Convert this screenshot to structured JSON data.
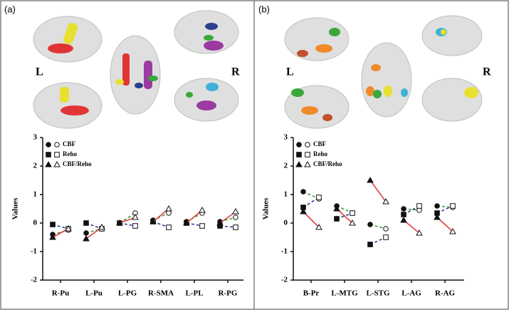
{
  "panel_labels": [
    "(a)",
    "(b)"
  ],
  "brains": [
    {
      "left": "L",
      "right": "R"
    },
    {
      "left": "L",
      "right": "R"
    }
  ],
  "chart_data": [
    {
      "type": "paired",
      "y_label": "Values",
      "categories": [
        "R-Pu",
        "L-Pu",
        "L-PG",
        "R-SMA",
        "L-PL",
        "R-PG"
      ],
      "ylim": [
        -2,
        3
      ],
      "yticks": [
        -2,
        -1,
        0,
        1,
        2,
        3
      ],
      "series": [
        {
          "name": "CBF",
          "marker": "circle",
          "color": "#3a9a3a",
          "dashed": true,
          "values": [
            -0.4,
            -0.35,
            0,
            0.1,
            0.05,
            0.05
          ],
          "values_open": [
            -0.25,
            -0.2,
            0.35,
            0.35,
            0.35,
            0.2
          ]
        },
        {
          "name": "Reho",
          "marker": "square",
          "color": "#2c3f8f",
          "dashed": true,
          "values": [
            -0.05,
            0,
            0,
            0.05,
            0,
            -0.1
          ],
          "values_open": [
            -0.2,
            -0.2,
            -0.1,
            -0.15,
            -0.1,
            -0.15
          ]
        },
        {
          "name": "CBF/Reho",
          "marker": "triangle",
          "color": "#e04040",
          "dashed": false,
          "values": [
            -0.5,
            -0.55,
            0,
            0.05,
            0,
            0
          ],
          "values_open": [
            -0.2,
            -0.15,
            0.2,
            0.5,
            0.45,
            0.4
          ]
        }
      ]
    },
    {
      "type": "paired",
      "y_label": "Values",
      "categories": [
        "B-Pr",
        "L-MTG",
        "L-STG",
        "L-AG",
        "R-AG"
      ],
      "ylim": [
        -2,
        3
      ],
      "yticks": [
        -2,
        -1,
        0,
        1,
        2,
        3
      ],
      "series": [
        {
          "name": "CBF",
          "marker": "circle",
          "color": "#3a9a3a",
          "dashed": true,
          "values": [
            1.1,
            0.6,
            -0.05,
            0.5,
            0.6
          ],
          "values_open": [
            0.85,
            0.35,
            -0.2,
            0.45,
            0.55
          ]
        },
        {
          "name": "Reho",
          "marker": "square",
          "color": "#2c3f8f",
          "dashed": true,
          "values": [
            0.55,
            0.15,
            -0.75,
            0.3,
            0.35
          ],
          "values_open": [
            0.9,
            0.35,
            -0.5,
            0.6,
            0.6
          ]
        },
        {
          "name": "CBF/Reho",
          "marker": "triangle",
          "color": "#e04040",
          "dashed": false,
          "values": [
            0.4,
            0.5,
            1.5,
            0.1,
            0.2
          ],
          "values_open": [
            -0.15,
            0,
            0.75,
            -0.35,
            -0.3
          ]
        }
      ]
    }
  ]
}
